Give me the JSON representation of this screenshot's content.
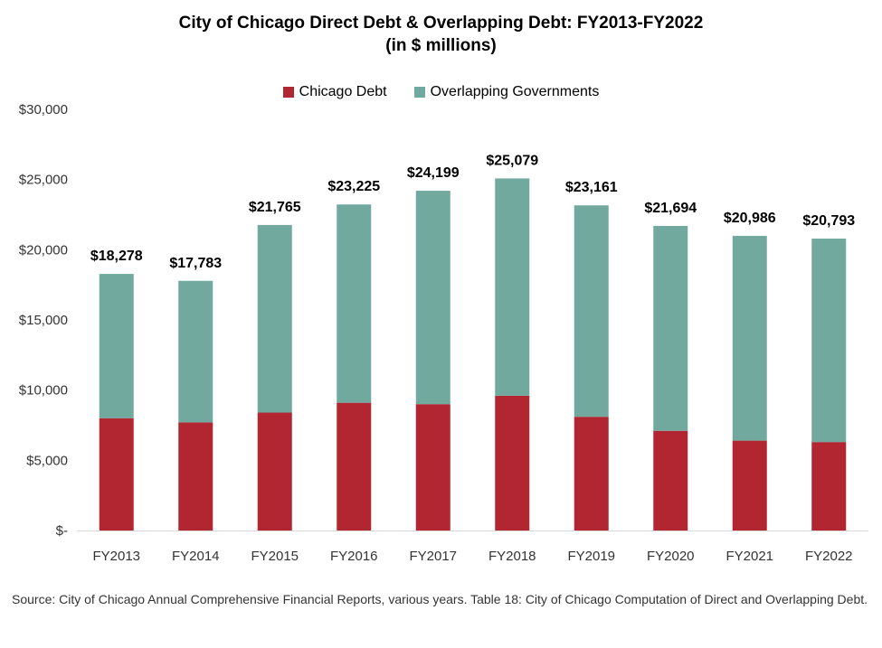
{
  "title": "City of Chicago Direct Debt & Overlapping Debt: FY2013-FY2022",
  "subtitle": "(in $ millions)",
  "legend": [
    {
      "label": "Chicago Debt",
      "color": "#b22632"
    },
    {
      "label": "Overlapping Governments",
      "color": "#72a99f"
    }
  ],
  "source": "Source:  City of Chicago Annual Comprehensive Financial Reports, various years. Table 18: City of Chicago Computation of Direct and Overlapping Debt.",
  "chart_data": {
    "type": "bar",
    "stacked": true,
    "categories": [
      "FY2013",
      "FY2014",
      "FY2015",
      "FY2016",
      "FY2017",
      "FY2018",
      "FY2019",
      "FY2020",
      "FY2021",
      "FY2022"
    ],
    "series": [
      {
        "name": "Chicago Debt",
        "color": "#b22632",
        "values": [
          8000,
          7700,
          8400,
          9100,
          9000,
          9600,
          8100,
          7100,
          6400,
          6300
        ]
      },
      {
        "name": "Overlapping Governments",
        "color": "#72a99f",
        "values": [
          10278,
          10083,
          13365,
          14125,
          15199,
          15479,
          15061,
          14594,
          14586,
          14493
        ]
      }
    ],
    "totals": [
      18278,
      17783,
      21765,
      23225,
      24199,
      25079,
      23161,
      21694,
      20986,
      20793
    ],
    "total_labels": [
      "$18,278",
      "$17,783",
      "$21,765",
      "$23,225",
      "$24,199",
      "$25,079",
      "$23,161",
      "$21,694",
      "$20,986",
      "$20,793"
    ],
    "y_ticks": [
      0,
      5000,
      10000,
      15000,
      20000,
      25000,
      30000
    ],
    "y_tick_labels": [
      "$-",
      "$5,000",
      "$10,000",
      "$15,000",
      "$20,000",
      "$25,000",
      "$30,000"
    ],
    "ylim": [
      0,
      30000
    ],
    "xlabel": "",
    "ylabel": "",
    "grid": false,
    "legend_position": "top"
  }
}
